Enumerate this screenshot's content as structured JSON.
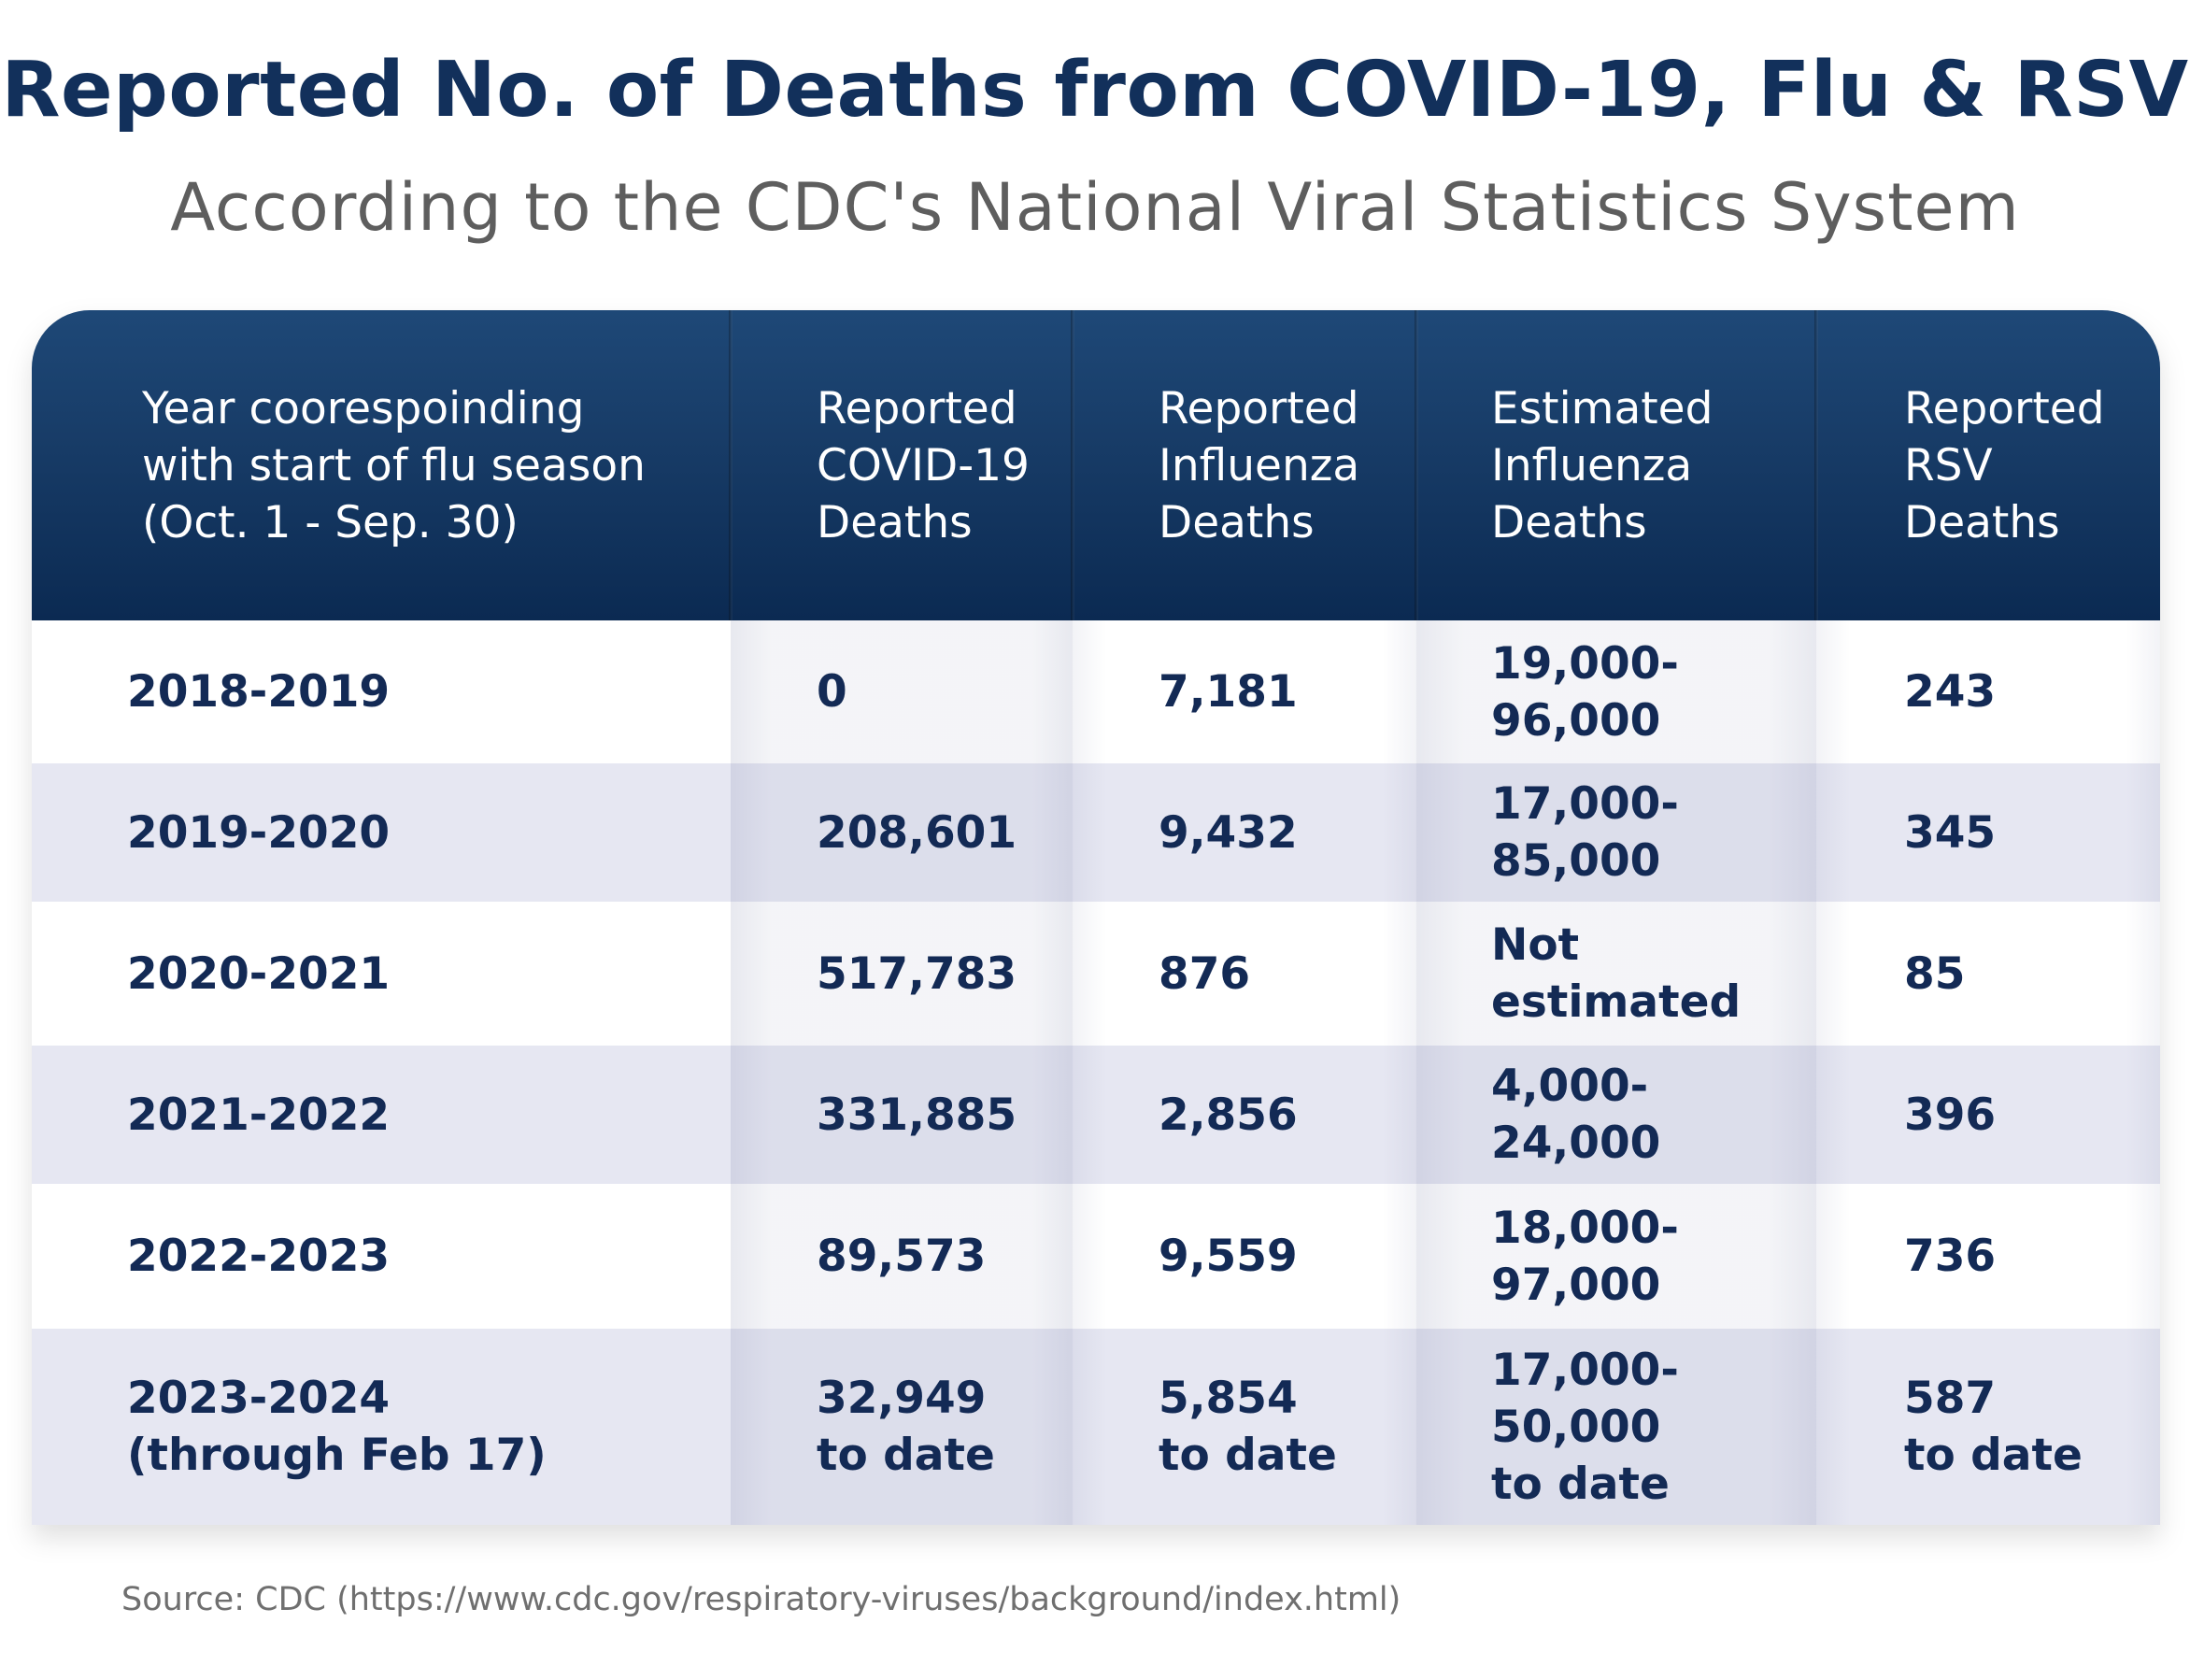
{
  "title": "Reported No. of Deaths from COVID-19, Flu & RSV",
  "subtitle": "According to the CDC's National Viral Statistics System",
  "source": "Source: CDC (https://www.cdc.gov/respiratory-viruses/background/index.html)",
  "colors": {
    "header_dark": "#0b2a52",
    "header_light": "#1e4877",
    "title": "#12305b",
    "text": "#132a55",
    "row_alt": "#e6e7f2"
  },
  "chart_data": {
    "type": "table",
    "title": "Reported No. of Deaths from COVID-19, Flu & RSV",
    "subtitle": "According to the CDC's National Viral Statistics System",
    "columns": [
      "Year coorespoinding\nwith start of flu season\n(Oct. 1 - Sep. 30)",
      "Reported\nCOVID-19\nDeaths",
      "Reported\nInfluenza\nDeaths",
      "Estimated\nInfluenza\nDeaths",
      "Reported\nRSV\nDeaths"
    ],
    "rows": [
      [
        "2018-2019",
        "0",
        "7,181",
        "19,000-96,000",
        "243"
      ],
      [
        "2019-2020",
        "208,601",
        "9,432",
        "17,000-85,000",
        "345"
      ],
      [
        "2020-2021",
        "517,783",
        "876",
        "Not estimated",
        "85"
      ],
      [
        "2021-2022",
        "331,885",
        "2,856",
        "4,000-24,000",
        "396"
      ],
      [
        "2022-2023",
        "89,573",
        "9,559",
        "18,000-97,000",
        "736"
      ],
      [
        "2023-2024\n(through Feb 17)",
        "32,949\nto date",
        "5,854\nto date",
        "17,000-50,000\nto date",
        "587\nto date"
      ]
    ]
  }
}
